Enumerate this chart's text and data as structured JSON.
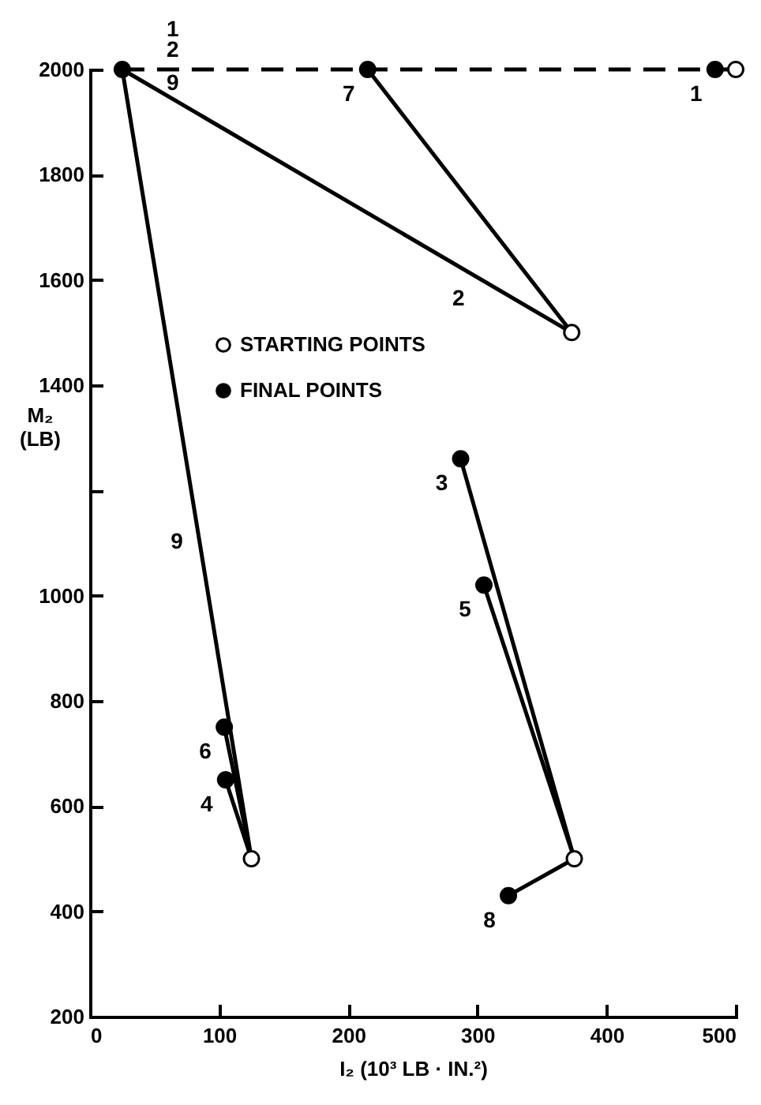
{
  "chart_data": {
    "type": "line",
    "xlabel": "I₂ (10³ LB · IN.²)",
    "ylabel": "M₂ (LB)",
    "xlim": [
      0,
      500
    ],
    "ylim": [
      200,
      2000
    ],
    "xticks": [
      0,
      100,
      200,
      300,
      400,
      500
    ],
    "yticks": [
      200,
      400,
      600,
      800,
      1000,
      {
        "value": 1200,
        "label": null
      },
      1400,
      1600,
      1800,
      2000
    ],
    "grid": false,
    "legend": "left",
    "series": [
      {
        "type": "line",
        "color": "#000000",
        "x": [
          373,
          25
        ],
        "values": [
          1500,
          2000
        ]
      },
      {
        "type": "line",
        "color": "#000000",
        "x": [
          373,
          215
        ],
        "values": [
          1500,
          2000
        ]
      },
      {
        "type": "line",
        "color": "#000000",
        "x": [
          125,
          25
        ],
        "values": [
          500,
          2000
        ]
      },
      {
        "type": "line",
        "color": "#000000",
        "x": [
          125,
          104
        ],
        "values": [
          500,
          750
        ]
      },
      {
        "type": "line",
        "color": "#000000",
        "x": [
          125,
          105
        ],
        "values": [
          500,
          650
        ]
      },
      {
        "type": "line",
        "color": "#000000",
        "x": [
          375,
          287
        ],
        "values": [
          500,
          1260
        ]
      },
      {
        "type": "line",
        "color": "#000000",
        "x": [
          375,
          305
        ],
        "values": [
          500,
          1020
        ]
      },
      {
        "type": "line",
        "color": "#000000",
        "x": [
          375,
          324
        ],
        "values": [
          500,
          430
        ]
      },
      {
        "type": "line",
        "line_style": "dashed",
        "color": "#000000",
        "x": [
          25,
          215,
          484,
          500
        ],
        "values": [
          2000,
          2000,
          2000,
          2000
        ]
      },
      {
        "type": "scatter",
        "name": "STARTING POINTS",
        "marker": "circle",
        "color": "#ffffff",
        "x": [
          500,
          373,
          125,
          375
        ],
        "values": [
          2000,
          1500,
          500,
          500
        ]
      },
      {
        "type": "scatter",
        "name": "FINAL POINTS",
        "marker": "circle",
        "color": "#000000",
        "x": [
          25,
          215,
          484,
          104,
          105,
          287,
          305,
          324
        ],
        "values": [
          2000,
          2000,
          2000,
          750,
          650,
          1260,
          1020,
          430
        ]
      }
    ],
    "annotations": [
      {
        "text": "1",
        "x": 25,
        "y": 2000
      },
      {
        "text": "2",
        "x": 25,
        "y": 2000
      },
      {
        "text": "9",
        "x": 25,
        "y": 2000
      },
      {
        "text": "7",
        "x": 215,
        "y": 2000
      },
      {
        "text": "1",
        "x": 484,
        "y": 2000
      },
      {
        "text": "2",
        "x": 300,
        "y": 1612
      },
      {
        "text": "9",
        "x": 82,
        "y": 1150
      },
      {
        "text": "3",
        "x": 287,
        "y": 1260
      },
      {
        "text": "5",
        "x": 305,
        "y": 1020
      },
      {
        "text": "6",
        "x": 104,
        "y": 750
      },
      {
        "text": "4",
        "x": 105,
        "y": 650
      },
      {
        "text": "8",
        "x": 324,
        "y": 430
      }
    ]
  }
}
